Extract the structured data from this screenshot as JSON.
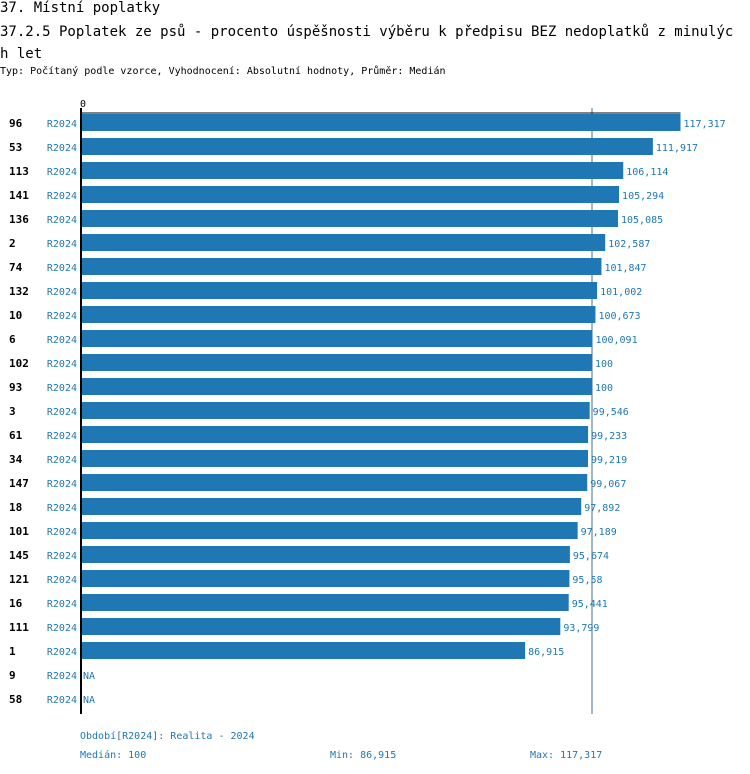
{
  "header": {
    "section": "37. Místní poplatky",
    "title": "37.2.5 Poplatek ze psů - procento úspěšnosti výběru k předpisu BEZ nedoplatků z minulých let",
    "subtitle": "Typ: Počítaný podle vzorce, Vyhodnocení: Absolutní hodnoty, Průměr: Medián"
  },
  "chart_data": {
    "type": "bar",
    "orientation": "horizontal",
    "axis_zero_label": "0",
    "categories": [
      "96",
      "53",
      "113",
      "141",
      "136",
      "2",
      "74",
      "132",
      "10",
      "6",
      "102",
      "93",
      "3",
      "61",
      "34",
      "147",
      "18",
      "101",
      "145",
      "121",
      "16",
      "111",
      "1",
      "9",
      "58"
    ],
    "period": "R2024",
    "values": [
      117.317,
      111.917,
      106.114,
      105.294,
      105.085,
      102.587,
      101.847,
      101.002,
      100.673,
      100.091,
      100,
      100,
      99.546,
      99.233,
      99.219,
      99.067,
      97.892,
      97.189,
      95.674,
      95.58,
      95.441,
      93.799,
      86.915,
      null,
      null
    ],
    "value_labels": [
      "117,317",
      "111,917",
      "106,114",
      "105,294",
      "105,085",
      "102,587",
      "101,847",
      "101,002",
      "100,673",
      "100,091",
      "100",
      "100",
      "99,546",
      "99,233",
      "99,219",
      "99,067",
      "97,892",
      "97,189",
      "95,674",
      "95,58",
      "95,441",
      "93,799",
      "86,915",
      "NA",
      "NA"
    ],
    "median": 100,
    "xlim": [
      0,
      117.317
    ],
    "bar_color": "#1f77b4"
  },
  "footer": {
    "period_legend": "Období[R2024]: Realita - 2024",
    "median": "Medián: 100",
    "min": "Min: 86,915",
    "max": "Max: 117,317"
  }
}
